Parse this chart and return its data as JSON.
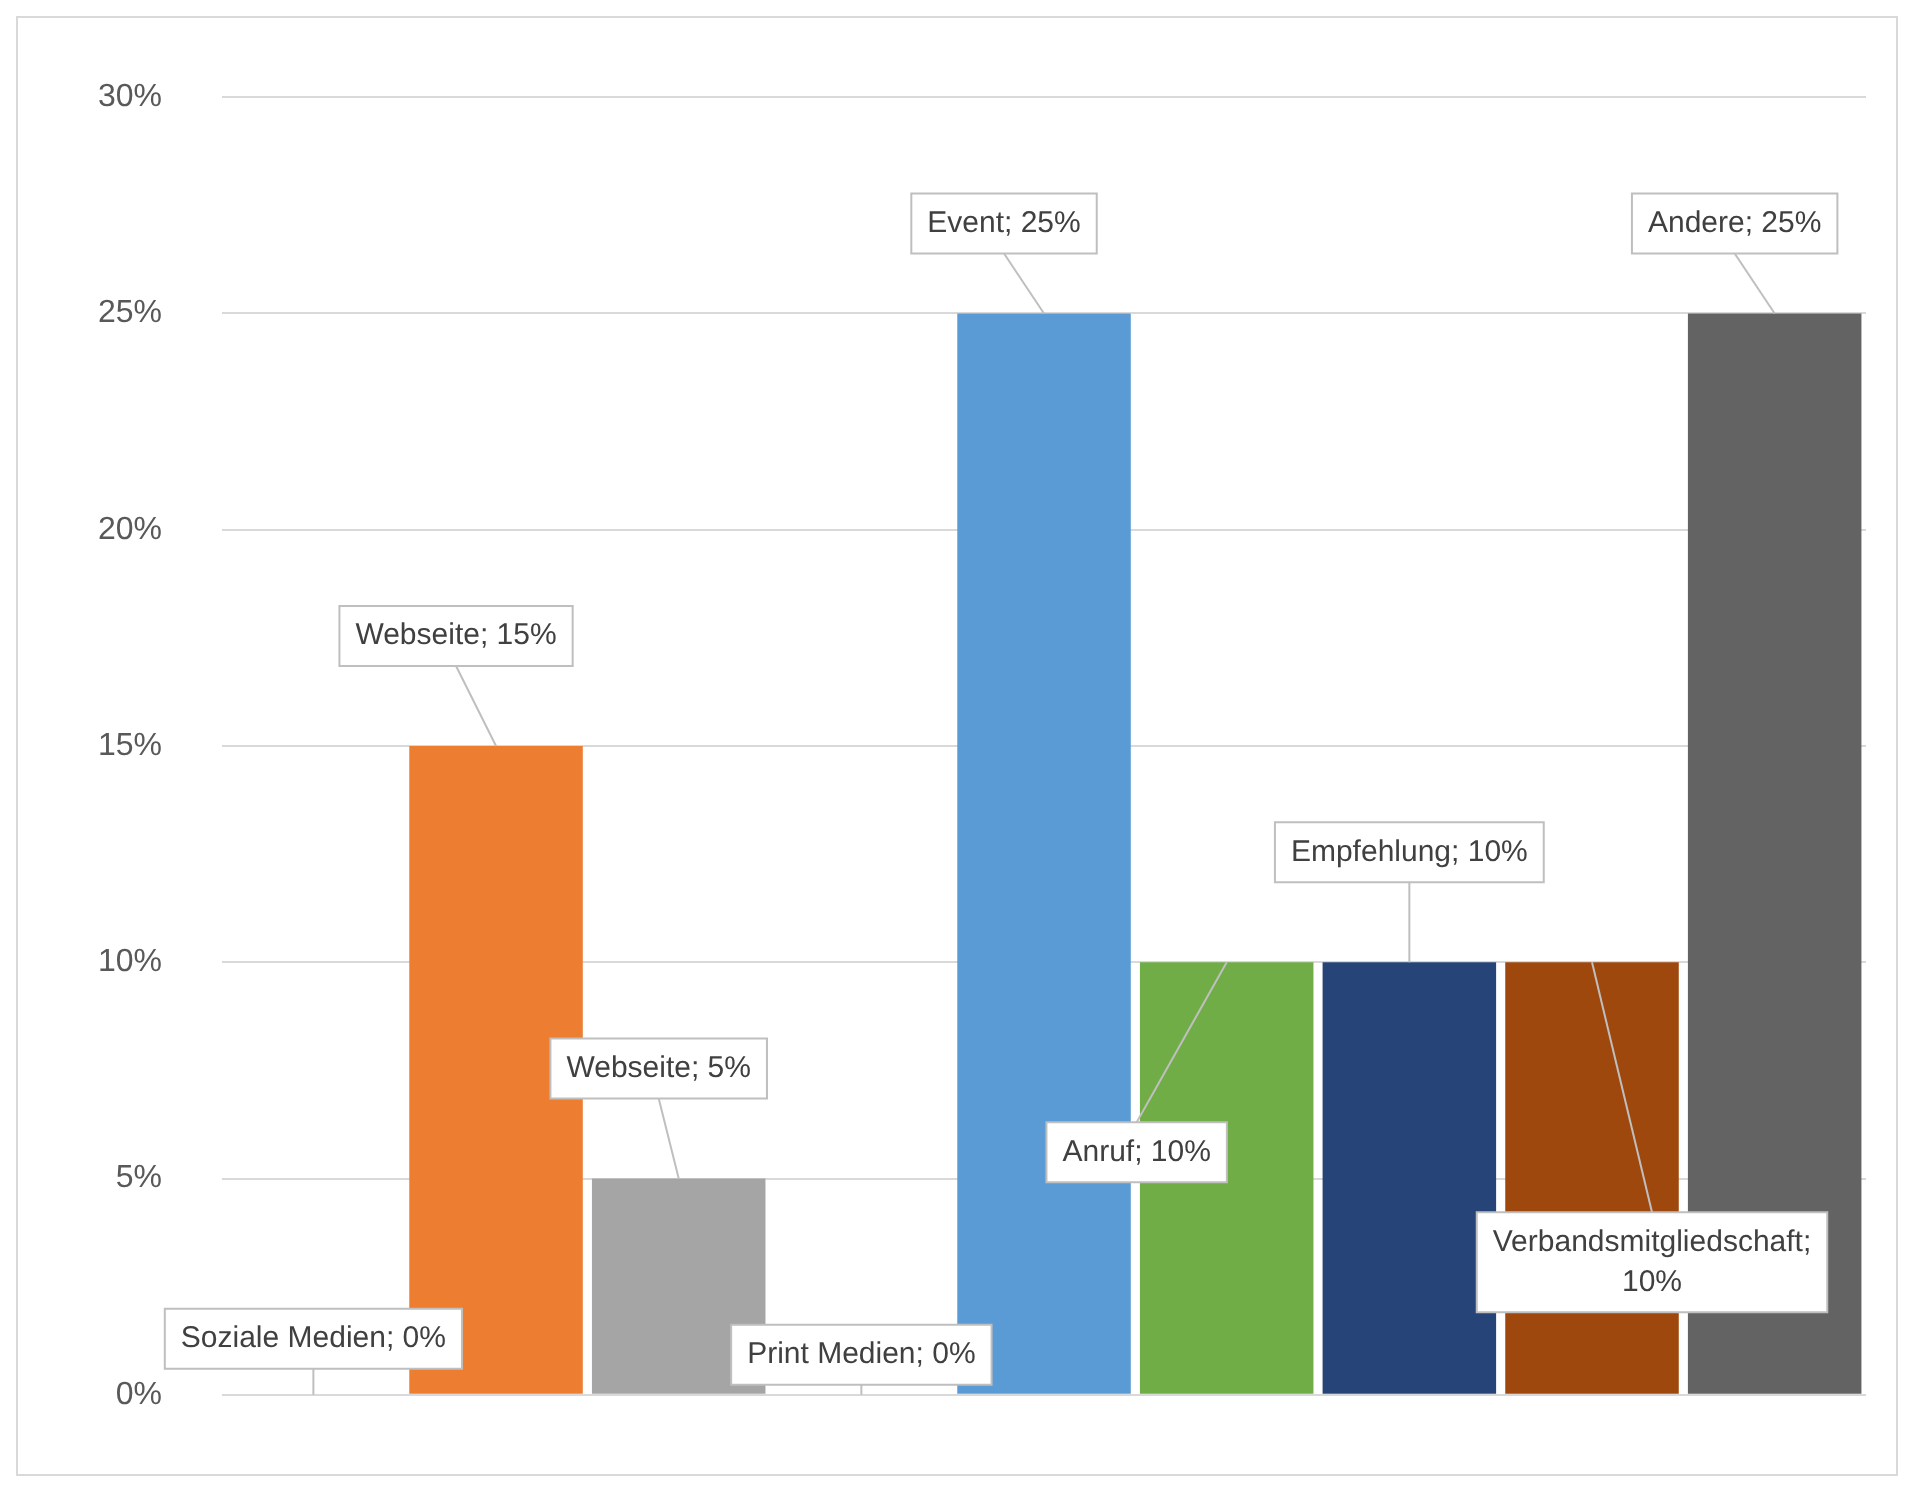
{
  "chart_data": {
    "type": "bar",
    "categories": [
      null,
      null,
      null,
      null,
      null,
      null,
      null,
      null,
      null
    ],
    "values": [
      0,
      15,
      5,
      0,
      25,
      10,
      10,
      10,
      25
    ],
    "colors": [
      "#4472c4",
      "#ed7d31",
      "#a5a5a5",
      "#ffc000",
      "#5b9bd5",
      "#70ad47",
      "#264478",
      "#9e480e",
      "#636363"
    ],
    "value_labels": [
      "Soziale Medien; 0%",
      "Webseite; 15%",
      "Webseite; 5%",
      "Print Medien; 0%",
      "Event; 25%",
      "Anruf; 10%",
      "Empfehlung; 10%",
      "Verbandsmitgliedschaft; 10%",
      "Andere; 25%"
    ],
    "ylim": [
      0,
      30
    ],
    "yticks": [
      {
        "value": 0,
        "label": "0%"
      },
      {
        "value": 5,
        "label": "5%"
      },
      {
        "value": 10,
        "label": "10%"
      },
      {
        "value": 15,
        "label": "15%"
      },
      {
        "value": 20,
        "label": "20%"
      },
      {
        "value": 25,
        "label": "25%"
      },
      {
        "value": 30,
        "label": "30%"
      }
    ],
    "grid": "y",
    "legend": false
  }
}
